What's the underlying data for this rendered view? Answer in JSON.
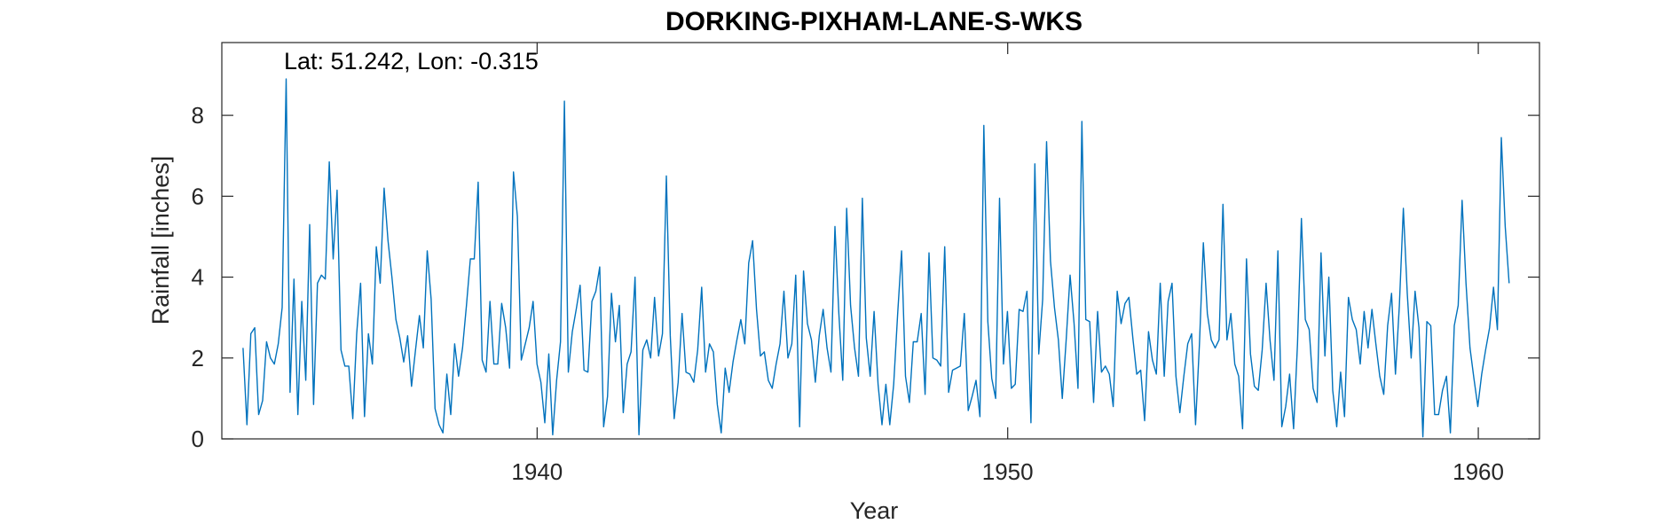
{
  "chart_data": {
    "type": "line",
    "title": "DORKING-PIXHAM-LANE-S-WKS",
    "annotation": "Lat: 51.242, Lon: -0.315",
    "xlabel": "Year",
    "ylabel": "Rainfall [inches]",
    "xlim": [
      1933.3,
      1961.3
    ],
    "ylim": [
      0,
      9.8
    ],
    "xticks": [
      1940,
      1950,
      1960
    ],
    "yticks": [
      0,
      2,
      4,
      6,
      8
    ],
    "series_color": "#0072BD",
    "grid": false,
    "series": [
      {
        "x_start": 1933.75,
        "x_step": 0.0833,
        "values": [
          2.25,
          0.35,
          2.6,
          2.75,
          0.6,
          0.95,
          2.4,
          2,
          1.85,
          2.35,
          3.25,
          8.9,
          1.15,
          3.95,
          0.6,
          3.4,
          1.45,
          5.3,
          0.85,
          3.85,
          4.05,
          3.95,
          6.85,
          4.45,
          6.15,
          2.2,
          1.8,
          1.8,
          0.5,
          2.6,
          3.85,
          0.55,
          2.6,
          1.85,
          4.75,
          3.85,
          6.2,
          4.9,
          4,
          2.95,
          2.5,
          1.9,
          2.55,
          1.3,
          2.2,
          3.05,
          2.25,
          4.65,
          3.45,
          0.75,
          0.35,
          0.15,
          1.6,
          0.6,
          2.35,
          1.55,
          2.25,
          3.3,
          4.45,
          4.45,
          6.35,
          1.95,
          1.65,
          3.4,
          1.85,
          1.85,
          3.35,
          2.75,
          1.75,
          6.6,
          5.5,
          1.95,
          2.35,
          2.75,
          3.4,
          1.85,
          1.4,
          0.4,
          2.1,
          0.1,
          1.45,
          2.4,
          8.35,
          1.65,
          2.65,
          3.2,
          3.8,
          1.7,
          1.65,
          3.4,
          3.65,
          4.25,
          0.3,
          1.05,
          3.6,
          2.4,
          3.3,
          0.65,
          1.85,
          2.15,
          4,
          0.1,
          2.2,
          2.45,
          2,
          3.5,
          2.05,
          2.6,
          6.5,
          2.55,
          0.5,
          1.4,
          3.1,
          1.65,
          1.6,
          1.4,
          2.2,
          3.75,
          1.65,
          2.35,
          2.15,
          0.85,
          0.15,
          1.75,
          1.15,
          1.9,
          2.45,
          2.95,
          2.35,
          4.35,
          4.9,
          3.2,
          2.05,
          2.15,
          1.45,
          1.25,
          1.85,
          2.35,
          3.65,
          2,
          2.35,
          4.05,
          0.3,
          4.15,
          2.85,
          2.45,
          1.4,
          2.55,
          3.2,
          2.25,
          1.65,
          5.25,
          3.1,
          1.45,
          5.7,
          3.3,
          2.25,
          1.55,
          5.95,
          2.5,
          1.55,
          3.15,
          1.35,
          0.35,
          1.35,
          0.35,
          1.35,
          3.1,
          4.65,
          1.55,
          0.9,
          2.4,
          2.4,
          3.1,
          1.1,
          4.6,
          2,
          1.95,
          1.8,
          4.75,
          1.15,
          1.7,
          1.75,
          1.8,
          3.1,
          0.7,
          1.05,
          1.45,
          0.55,
          7.75,
          2.9,
          1.5,
          1,
          5.95,
          1.85,
          3.15,
          1.25,
          1.35,
          3.2,
          3.15,
          3.65,
          0.4,
          6.8,
          2.1,
          3.45,
          7.35,
          4.4,
          3.25,
          2.45,
          1,
          2.45,
          4.05,
          2.85,
          1.25,
          7.85,
          2.95,
          2.9,
          0.9,
          3.15,
          1.65,
          1.8,
          1.6,
          0.8,
          3.65,
          2.85,
          3.35,
          3.5,
          2.5,
          1.6,
          1.7,
          0.45,
          2.65,
          1.95,
          1.6,
          3.85,
          1.55,
          3.4,
          3.85,
          1.55,
          0.65,
          1.55,
          2.35,
          2.6,
          0.35,
          2.35,
          4.85,
          3.1,
          2.45,
          2.25,
          2.45,
          5.8,
          2.45,
          3.1,
          1.85,
          1.55,
          0.25,
          4.45,
          2.1,
          1.3,
          1.2,
          2.2,
          3.85,
          2.45,
          1.45,
          4.65,
          0.3,
          0.8,
          1.6,
          0.25,
          2.35,
          5.45,
          2.95,
          2.7,
          1.25,
          0.9,
          4.6,
          2.05,
          4,
          1.2,
          0.3,
          1.65,
          0.55,
          3.5,
          2.95,
          2.7,
          1.85,
          3.15,
          2.25,
          3.2,
          2.35,
          1.55,
          1.1,
          2.8,
          3.6,
          1.6,
          3.3,
          5.7,
          3.6,
          2,
          3.65,
          2.75,
          0.05,
          2.9,
          2.8,
          0.6,
          0.6,
          1.2,
          1.55,
          0.15,
          2.8,
          3.3,
          5.9,
          3.85,
          2.25,
          1.5,
          0.8,
          1.6,
          2.2,
          2.75,
          3.75,
          2.7,
          7.45,
          5.25,
          3.85
        ]
      }
    ]
  }
}
